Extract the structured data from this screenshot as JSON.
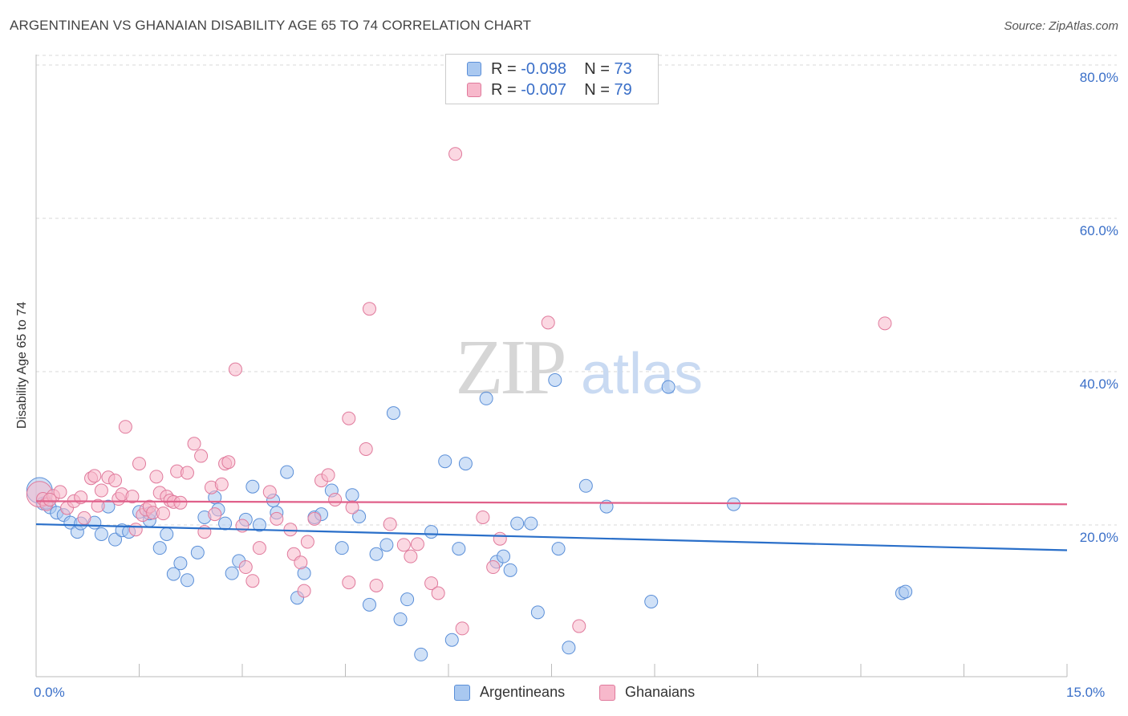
{
  "title": "ARGENTINEAN VS GHANAIAN DISABILITY AGE 65 TO 74 CORRELATION CHART",
  "source": "Source: ZipAtlas.com",
  "watermark": {
    "zip": "ZIP",
    "atlas": "atlas"
  },
  "legend": {
    "rows": [
      {
        "r_label": "R =",
        "r_value": "-0.098",
        "n_label": "N =",
        "n_value": "73"
      },
      {
        "r_label": "R =",
        "r_value": "-0.007",
        "n_label": "N =",
        "n_value": "79"
      }
    ],
    "bottom": [
      "Argentineans",
      "Ghanaians"
    ]
  },
  "colors": {
    "blue_fill": "#a9c8f0",
    "blue_stroke": "#5b8fd8",
    "blue_line": "#2a6fc9",
    "pink_fill": "#f7b8cb",
    "pink_stroke": "#e07a9c",
    "pink_line": "#e0608a",
    "grid": "#d8d8d8",
    "axis_text": "#3a6fc8"
  },
  "chart_data": {
    "type": "scatter",
    "title": "ARGENTINEAN VS GHANAIAN DISABILITY AGE 65 TO 74 CORRELATION CHART",
    "xlabel": "",
    "ylabel": "Disability Age 65 to 74",
    "xlim": [
      0,
      15
    ],
    "ylim": [
      0,
      82
    ],
    "x_tick_labels": [
      "0.0%",
      "15.0%"
    ],
    "y_ticks": [
      20,
      40,
      60,
      80
    ],
    "y_tick_labels": [
      "20.0%",
      "40.0%",
      "60.0%",
      "80.0%"
    ],
    "grid": true,
    "legend_position": "top-center",
    "series": [
      {
        "name": "Argentineans",
        "color": "#a9c8f0",
        "r": -0.098,
        "n": 73,
        "trend": {
          "x": [
            0,
            15
          ],
          "y": [
            20.1,
            16.7
          ]
        },
        "points": [
          [
            0.05,
            24.5
          ],
          [
            0.1,
            22.8
          ],
          [
            0.2,
            22.3
          ],
          [
            0.3,
            21.6
          ],
          [
            0.4,
            21.3
          ],
          [
            0.5,
            20.3
          ],
          [
            0.6,
            19.1
          ],
          [
            0.65,
            20.2
          ],
          [
            0.85,
            20.3
          ],
          [
            0.95,
            18.8
          ],
          [
            1.05,
            22.4
          ],
          [
            1.15,
            18.1
          ],
          [
            1.25,
            19.3
          ],
          [
            1.35,
            19.1
          ],
          [
            1.5,
            21.7
          ],
          [
            1.65,
            20.6
          ],
          [
            1.65,
            21.5
          ],
          [
            1.8,
            17.0
          ],
          [
            1.9,
            18.8
          ],
          [
            2.0,
            13.6
          ],
          [
            2.1,
            15.0
          ],
          [
            2.2,
            12.8
          ],
          [
            2.35,
            16.4
          ],
          [
            2.45,
            21.0
          ],
          [
            2.6,
            23.6
          ],
          [
            2.65,
            22.0
          ],
          [
            2.75,
            20.2
          ],
          [
            2.85,
            13.7
          ],
          [
            2.95,
            15.3
          ],
          [
            3.05,
            20.7
          ],
          [
            3.15,
            25.0
          ],
          [
            3.25,
            20.0
          ],
          [
            3.45,
            23.2
          ],
          [
            3.5,
            21.6
          ],
          [
            3.65,
            26.9
          ],
          [
            3.8,
            10.5
          ],
          [
            3.9,
            13.7
          ],
          [
            4.05,
            21.0
          ],
          [
            4.15,
            21.4
          ],
          [
            4.3,
            24.5
          ],
          [
            4.45,
            17.0
          ],
          [
            4.6,
            23.9
          ],
          [
            4.7,
            21.1
          ],
          [
            4.85,
            9.6
          ],
          [
            4.95,
            16.2
          ],
          [
            5.1,
            17.4
          ],
          [
            5.2,
            34.6
          ],
          [
            5.3,
            7.7
          ],
          [
            5.4,
            10.3
          ],
          [
            5.6,
            3.1
          ],
          [
            5.75,
            19.1
          ],
          [
            5.95,
            28.3
          ],
          [
            6.05,
            5.0
          ],
          [
            6.15,
            16.9
          ],
          [
            6.25,
            28.0
          ],
          [
            6.55,
            36.5
          ],
          [
            6.7,
            15.2
          ],
          [
            6.8,
            15.9
          ],
          [
            6.9,
            14.1
          ],
          [
            7.0,
            20.2
          ],
          [
            7.2,
            20.2
          ],
          [
            7.3,
            8.6
          ],
          [
            7.55,
            38.9
          ],
          [
            7.6,
            16.9
          ],
          [
            7.75,
            4.0
          ],
          [
            8.0,
            25.1
          ],
          [
            8.3,
            22.4
          ],
          [
            8.95,
            10.0
          ],
          [
            9.2,
            38.0
          ],
          [
            10.15,
            22.7
          ],
          [
            12.6,
            11.1
          ],
          [
            12.65,
            11.3
          ],
          [
            0.15,
            22.9
          ]
        ]
      },
      {
        "name": "Ghanaians",
        "color": "#f7b8cb",
        "r": -0.007,
        "n": 79,
        "trend": {
          "x": [
            0,
            15
          ],
          "y": [
            23.1,
            22.7
          ]
        },
        "points": [
          [
            0.05,
            24.0
          ],
          [
            0.1,
            23.4
          ],
          [
            0.15,
            22.7
          ],
          [
            0.25,
            23.8
          ],
          [
            0.35,
            24.3
          ],
          [
            0.45,
            22.2
          ],
          [
            0.55,
            23.1
          ],
          [
            0.65,
            23.6
          ],
          [
            0.7,
            20.9
          ],
          [
            0.8,
            26.1
          ],
          [
            0.85,
            26.4
          ],
          [
            0.9,
            22.5
          ],
          [
            0.95,
            24.5
          ],
          [
            1.05,
            26.2
          ],
          [
            1.15,
            25.8
          ],
          [
            1.2,
            23.4
          ],
          [
            1.25,
            24.0
          ],
          [
            1.3,
            32.8
          ],
          [
            1.4,
            23.7
          ],
          [
            1.45,
            19.4
          ],
          [
            1.5,
            28.0
          ],
          [
            1.55,
            21.3
          ],
          [
            1.6,
            22.0
          ],
          [
            1.65,
            22.4
          ],
          [
            1.7,
            21.6
          ],
          [
            1.75,
            26.3
          ],
          [
            1.8,
            24.2
          ],
          [
            1.85,
            21.5
          ],
          [
            1.9,
            23.7
          ],
          [
            1.95,
            23.2
          ],
          [
            2.0,
            23.0
          ],
          [
            2.05,
            27.0
          ],
          [
            2.1,
            22.9
          ],
          [
            2.2,
            26.8
          ],
          [
            2.3,
            30.6
          ],
          [
            2.4,
            29.0
          ],
          [
            2.45,
            19.1
          ],
          [
            2.55,
            24.9
          ],
          [
            2.6,
            21.4
          ],
          [
            2.7,
            25.3
          ],
          [
            2.75,
            28.0
          ],
          [
            2.8,
            28.2
          ],
          [
            2.9,
            40.3
          ],
          [
            3.0,
            19.9
          ],
          [
            3.05,
            14.5
          ],
          [
            3.15,
            12.7
          ],
          [
            3.25,
            17.0
          ],
          [
            3.4,
            24.3
          ],
          [
            3.5,
            20.8
          ],
          [
            3.7,
            19.4
          ],
          [
            3.75,
            16.2
          ],
          [
            3.85,
            15.1
          ],
          [
            3.9,
            11.4
          ],
          [
            3.95,
            17.8
          ],
          [
            4.05,
            20.8
          ],
          [
            4.15,
            25.8
          ],
          [
            4.25,
            26.5
          ],
          [
            4.35,
            23.3
          ],
          [
            4.55,
            33.9
          ],
          [
            4.55,
            12.5
          ],
          [
            4.6,
            22.3
          ],
          [
            4.8,
            29.9
          ],
          [
            4.85,
            48.2
          ],
          [
            4.95,
            12.1
          ],
          [
            5.15,
            20.1
          ],
          [
            5.35,
            17.4
          ],
          [
            5.45,
            15.9
          ],
          [
            5.55,
            17.5
          ],
          [
            5.75,
            12.4
          ],
          [
            5.85,
            11.1
          ],
          [
            6.1,
            68.4
          ],
          [
            6.2,
            6.5
          ],
          [
            6.5,
            21.0
          ],
          [
            6.65,
            14.5
          ],
          [
            6.75,
            18.2
          ],
          [
            7.45,
            46.4
          ],
          [
            7.9,
            6.8
          ],
          [
            12.35,
            46.3
          ],
          [
            0.2,
            23.3
          ]
        ]
      }
    ]
  }
}
